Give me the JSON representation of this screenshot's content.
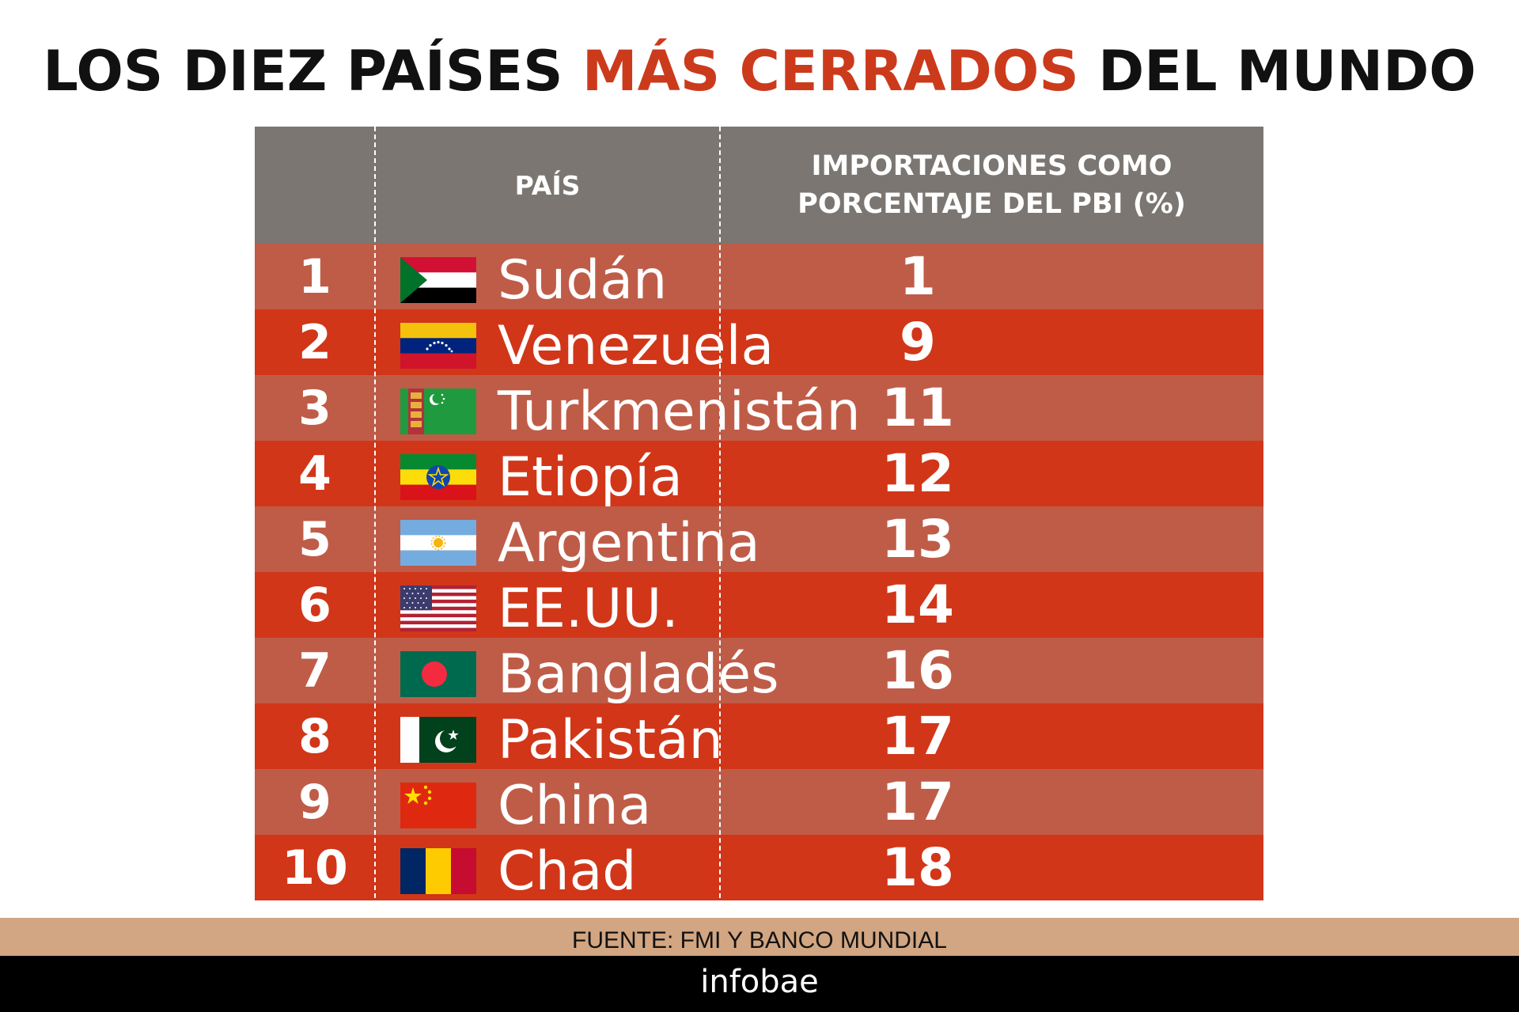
{
  "title": {
    "part1": "LOS DIEZ PAÍSES ",
    "accent": "MÁS CERRADOS",
    "part2": " DEL MUNDO"
  },
  "colors": {
    "accent": "#cc3a1c",
    "header_bg": "#7b7671",
    "row_light": "#bf5c48",
    "row_dark": "#d13619",
    "footer_bg": "#d2a682"
  },
  "chart_data": {
    "type": "table",
    "columns": [
      "",
      "PAÍS",
      "IMPORTACIONES COMO\nPORCENTAJE DEL PBI (%)"
    ],
    "rows": [
      {
        "rank": "1",
        "country": "Sudán",
        "flag": "sudan-flag",
        "value": 1
      },
      {
        "rank": "2",
        "country": "Venezuela",
        "flag": "venezuela-flag",
        "value": 9
      },
      {
        "rank": "3",
        "country": "Turkmenistán",
        "flag": "turkmenistan-flag",
        "value": 11
      },
      {
        "rank": "4",
        "country": "Etiopía",
        "flag": "ethiopia-flag",
        "value": 12
      },
      {
        "rank": "5",
        "country": "Argentina",
        "flag": "argentina-flag",
        "value": 13
      },
      {
        "rank": "6",
        "country": "EE.UU.",
        "flag": "usa-flag",
        "value": 14
      },
      {
        "rank": "7",
        "country": "Bangladés",
        "flag": "bangladesh-flag",
        "value": 16
      },
      {
        "rank": "8",
        "country": "Pakistán",
        "flag": "pakistan-flag",
        "value": 17
      },
      {
        "rank": "9",
        "country": "China",
        "flag": "china-flag",
        "value": 17
      },
      {
        "rank": "10",
        "country": "Chad",
        "flag": "chad-flag",
        "value": 18
      }
    ]
  },
  "footer": {
    "source": "FUENTE:  FMI Y BANCO MUNDIAL",
    "brand": "infobae"
  }
}
